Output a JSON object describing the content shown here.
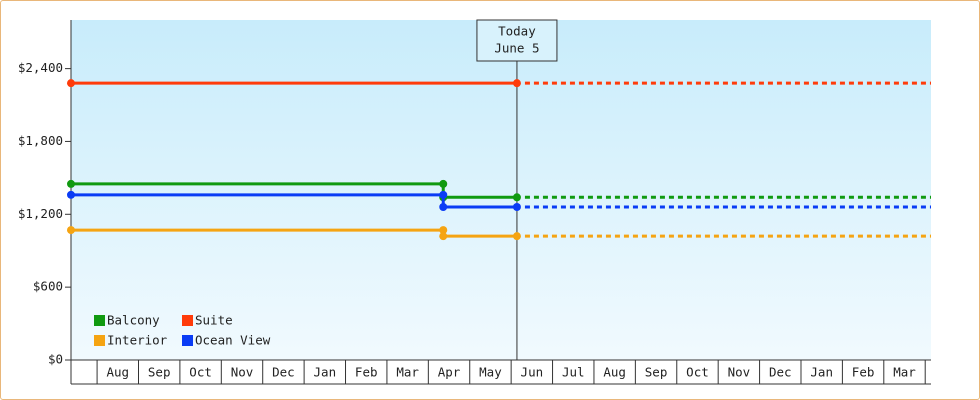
{
  "chart_data": {
    "type": "line",
    "categories": [
      null,
      "Aug",
      "Sep",
      "Oct",
      "Nov",
      "Dec",
      "Jan",
      "Feb",
      "Mar",
      "Apr",
      "May",
      "Jun",
      "Jul",
      "Aug",
      "Sep",
      "Oct",
      "Nov",
      "Dec",
      "Jan",
      "Feb",
      "Mar"
    ],
    "x": [
      -0.63,
      8.36,
      8.36,
      10.14
    ],
    "xlim": [
      -0.63,
      20.14
    ],
    "series": [
      {
        "name": "Balcony",
        "color": "#109a10",
        "values": [
          1450,
          1450,
          1340,
          1340
        ]
      },
      {
        "name": "Suite",
        "color": "#ff3b0a",
        "values": [
          2280,
          2280,
          2280,
          2280
        ]
      },
      {
        "name": "Interior",
        "color": "#f5a412",
        "values": [
          1070,
          1070,
          1020,
          1020
        ]
      },
      {
        "name": "Ocean View",
        "color": "#0a3cf5",
        "values": [
          1360,
          1360,
          1260,
          1260
        ]
      }
    ],
    "ylim": [
      0,
      2800
    ],
    "yticks": [
      {
        "value": 0,
        "label": "$0"
      },
      {
        "value": 600,
        "label": "$600"
      },
      {
        "value": 1200,
        "label": "$1,200"
      },
      {
        "value": 1800,
        "label": "$1,800"
      },
      {
        "value": 2400,
        "label": "$2,400"
      }
    ],
    "annotation": {
      "x": 10.14,
      "lines": [
        "Today",
        "June 5"
      ]
    },
    "legend": "lower left"
  }
}
